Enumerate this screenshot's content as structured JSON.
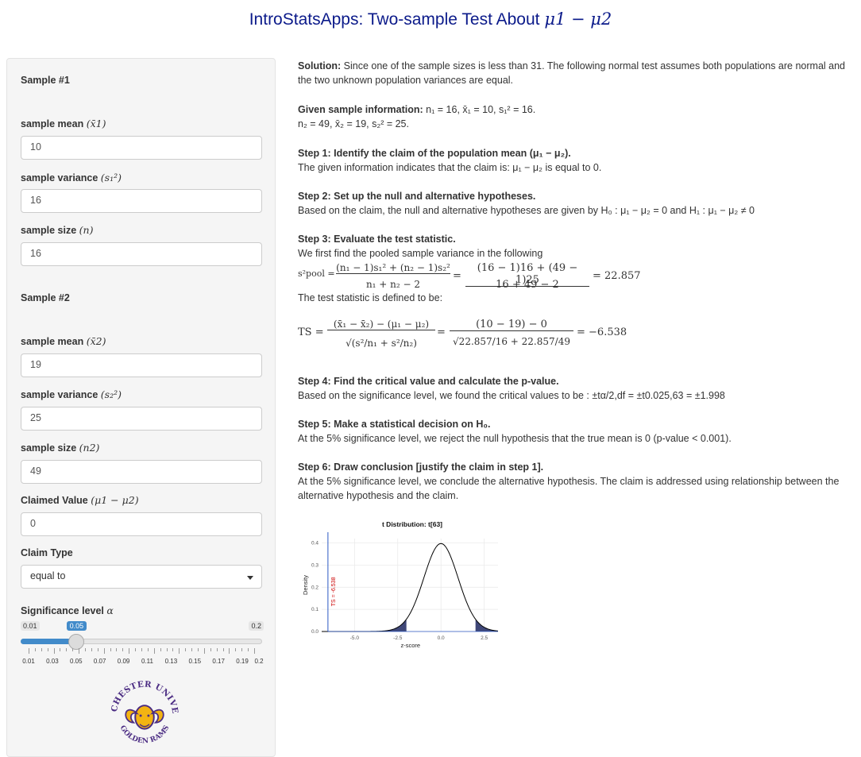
{
  "title": {
    "text": "IntroStatsApps: Two-sample Test About ",
    "math": "μ1 − μ2"
  },
  "sidebar": {
    "sample1_heading": "Sample #1",
    "mean1_label": "sample mean",
    "mean1_sym": "(x̄1)",
    "mean1_value": "10",
    "var1_label": "sample variance",
    "var1_sym": "(s₁²)",
    "var1_value": "16",
    "n1_label": "sample size",
    "n1_sym": "(n)",
    "n1_value": "16",
    "sample2_heading": "Sample #2",
    "mean2_label": "sample mean",
    "mean2_sym": "(x̄2)",
    "mean2_value": "19",
    "var2_label": "sample variance",
    "var2_sym": "(s₂²)",
    "var2_value": "25",
    "n2_label": "sample size",
    "n2_sym": "(n2)",
    "n2_value": "49",
    "claimed_label": "Claimed Value",
    "claimed_sym": "(μ1 − μ2)",
    "claimed_value": "0",
    "claim_type_label": "Claim Type",
    "claim_type_value": "equal to",
    "sig_label": "Significance level",
    "sig_sym": "α",
    "slider": {
      "min": "0.01",
      "max": "0.2",
      "value": "0.05",
      "fraction": 0.21,
      "ticks": [
        "0.01",
        "0.03",
        "0.05",
        "0.07",
        "0.09",
        "0.11",
        "0.13",
        "0.15",
        "0.17",
        "0.19",
        "0.2"
      ]
    },
    "logo_text_top": "WEST CHESTER UNIVERSITY",
    "logo_text_bottom": "GOLDEN RAMS"
  },
  "solution": {
    "p1_bold": "Solution:",
    "p1_text": " Since one of the sample sizes is less than 31. The following normal test assumes both populations are normal and the two unknown population variances are equal.",
    "given_bold": "Given sample information: ",
    "given_l1": "n₁ = 16, x̄₁ = 10, s₁² = 16.",
    "given_l2": "n₂ = 49, x̄₂ = 19, s₂² = 25.",
    "s1_bold": "Step 1: Identify the claim of the population mean (μ₁ − μ₂).",
    "s1_text": "The given information indicates that the claim is: μ₁ − μ₂ is equal to 0.",
    "s2_bold": "Step 2: Set up the null and alternative hypotheses.",
    "s2_text": "Based on the claim, the null and alternative hypotheses are given by H₀ : μ₁ − μ₂ = 0 and H₁ : μ₁ − μ₂ ≠ 0",
    "s3_bold": "Step 3: Evaluate the test statistic.",
    "s3_text": "We first find the pooled sample variance in the following",
    "pooled_lhs": "s²pool =",
    "pooled_num": "(n₁ − 1)s₁² + (n₂ − 1)s₂²",
    "pooled_den": "n₁ + n₂ − 2",
    "pooled_num2": "(16 − 1)16 + (49 − 1)25",
    "pooled_den2": "16 + 49 − 2",
    "pooled_res": "= 22.857",
    "ts_intro": "The test statistic is defined to be:",
    "ts_lhs": "TS =",
    "ts_num": "(x̄₁ − x̄₂) − (μ₁ − μ₂)",
    "ts_den": "√(s²/n₁ + s²/n₂)",
    "ts_num2": "(10 − 19) − 0",
    "ts_den2": "√22.857/16 + 22.857/49",
    "ts_res": "= −6.538",
    "s4_bold": "Step 4: Find the critical value and calculate the p-value.",
    "s4_text": "Based on the significance level, we found the critical values to be : ±tα/2,df = ±t0.025,63 = ±1.998",
    "s5_bold": "Step 5: Make a statistical decision on H₀.",
    "s5_text": "At the 5% significance level, we reject the null hypothesis that the true mean is 0 (p-value < 0.001).",
    "s6_bold": "Step 6: Draw conclusion [justify the claim in step 1].",
    "s6_text": "At the 5% significance level, we conclude the alternative hypothesis. The claim is addressed using relationship between the alternative hypothesis and the claim."
  },
  "chart_data": {
    "type": "area",
    "title": "t Distribution: t[63]",
    "xlabel": "z-score",
    "ylabel": "Density",
    "df": 63,
    "xlim": [
      -6.9,
      3.3
    ],
    "ylim": [
      0,
      0.42
    ],
    "x_ticks": [
      "-5.0",
      "-2.5",
      "0.0",
      "2.5"
    ],
    "y_ticks": [
      "0.0",
      "0.1",
      "0.2",
      "0.3",
      "0.4"
    ],
    "critical_values": [
      -1.998,
      1.998
    ],
    "test_statistic": -6.538,
    "ts_label": "TS = -6.538",
    "colors": {
      "curve": "#000000",
      "tail": "#3f4778",
      "ts_line": "#2b59c3",
      "ts_text": "#cc0000"
    }
  }
}
